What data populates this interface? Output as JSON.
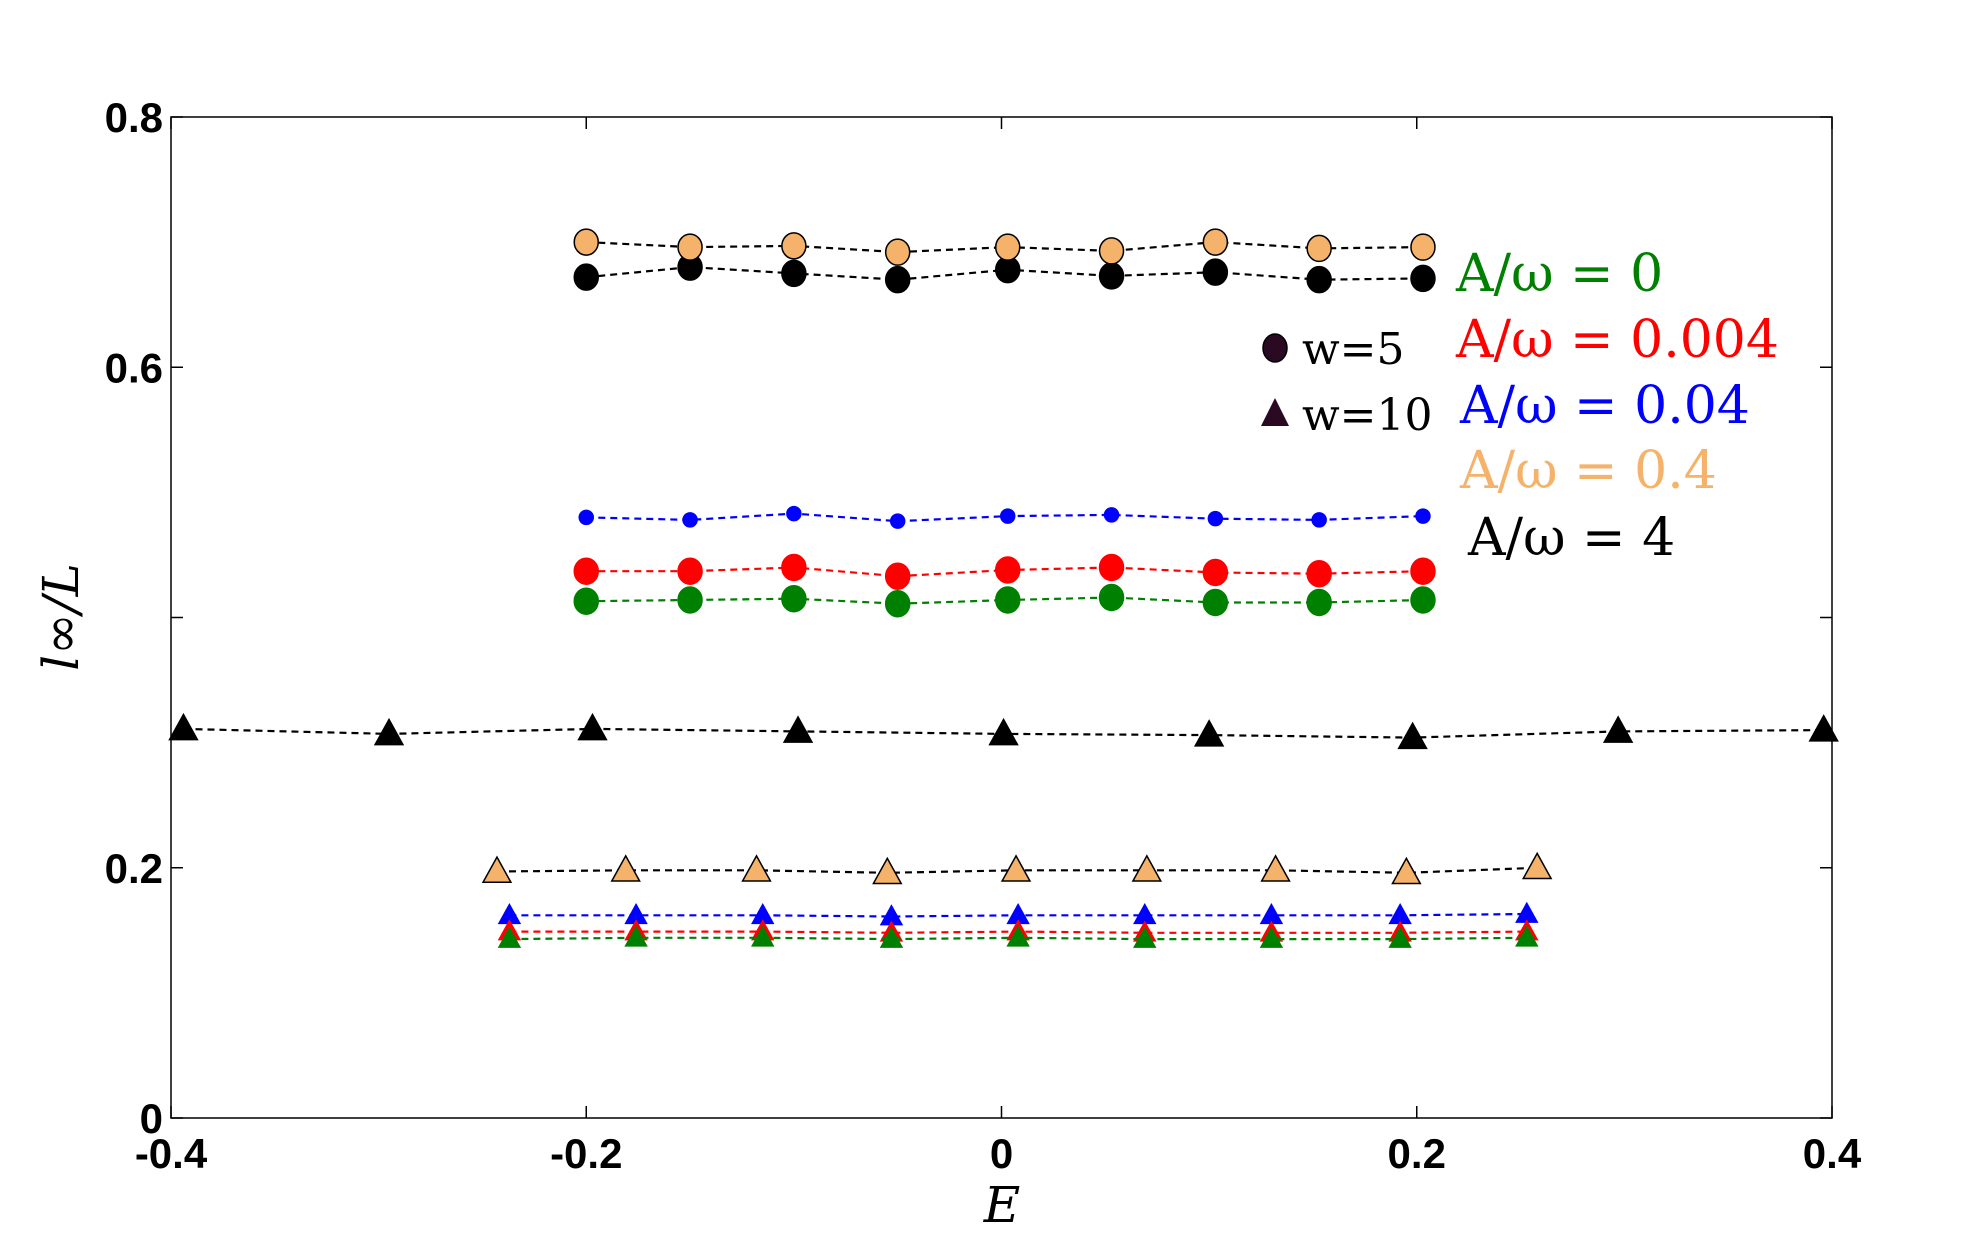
{
  "chart_data": {
    "type": "scatter",
    "xlabel": "E",
    "ylabel": "l∞/L",
    "xlim": [
      -0.4,
      0.4
    ],
    "ylim": [
      0,
      0.8
    ],
    "xticks": [
      -0.4,
      -0.2,
      0,
      0.2,
      0.4
    ],
    "xtick_labels": [
      "-0.4",
      "-0.2",
      "0",
      "0.2",
      "0.4"
    ],
    "yticks": [
      0,
      0.2,
      0.4,
      0.6,
      0.8
    ],
    "ytick_labels": [
      "0",
      "0.2",
      "",
      "0.6",
      "0.8"
    ],
    "grid": false,
    "colors": {
      "A0": "#008000",
      "A0004": "#ff0000",
      "A004": "#0000ff",
      "A04": "#f5b26b",
      "A4": "#000000",
      "marker_legend": "#2a0a22"
    },
    "legend": [
      {
        "label": "A/ω = 0",
        "color": "#008000"
      },
      {
        "label": "A/ω = 0.004",
        "color": "#ff0000"
      },
      {
        "label": "A/ω = 0.04",
        "color": "#0000ff"
      },
      {
        "label": "A/ω = 0.4",
        "color": "#f5b26b"
      },
      {
        "label": "A/ω = 4",
        "color": "#000000"
      }
    ],
    "marker_legend": [
      {
        "label": "w=5",
        "marker": "circle"
      },
      {
        "label": "w=10",
        "marker": "triangle"
      }
    ],
    "series": [
      {
        "name": "w=5, A/ω = 4",
        "marker": "circle",
        "color": "#000000",
        "fill": "#000000",
        "x": [
          -0.2,
          -0.15,
          -0.1,
          -0.05,
          0.003,
          0.053,
          0.103,
          0.153,
          0.203
        ],
        "y": [
          0.672,
          0.68,
          0.675,
          0.67,
          0.678,
          0.673,
          0.676,
          0.67,
          0.671
        ]
      },
      {
        "name": "w=5, A/ω = 0.4",
        "marker": "circle",
        "color": "#000000",
        "fill": "#f5b26b",
        "x": [
          -0.2,
          -0.15,
          -0.1,
          -0.05,
          0.003,
          0.053,
          0.103,
          0.153,
          0.203
        ],
        "y": [
          0.7,
          0.696,
          0.697,
          0.692,
          0.696,
          0.693,
          0.7,
          0.695,
          0.696
        ]
      },
      {
        "name": "w=5, A/ω = 0.04",
        "marker": "circle",
        "color": "#0000ff",
        "fill": "#0000ff",
        "x": [
          -0.2,
          -0.15,
          -0.1,
          -0.05,
          0.003,
          0.053,
          0.103,
          0.153,
          0.203
        ],
        "y": [
          0.48,
          0.478,
          0.483,
          0.477,
          0.481,
          0.482,
          0.479,
          0.478,
          0.481
        ]
      },
      {
        "name": "w=5, A/ω = 0.004",
        "marker": "circle",
        "color": "#ff0000",
        "fill": "#ff0000",
        "x": [
          -0.2,
          -0.15,
          -0.1,
          -0.05,
          0.003,
          0.053,
          0.103,
          0.153,
          0.203
        ],
        "y": [
          0.437,
          0.437,
          0.44,
          0.433,
          0.438,
          0.44,
          0.436,
          0.435,
          0.437
        ]
      },
      {
        "name": "w=5, A/ω = 0",
        "marker": "circle",
        "color": "#008000",
        "fill": "#008000",
        "x": [
          -0.2,
          -0.15,
          -0.1,
          -0.05,
          0.003,
          0.053,
          0.103,
          0.153,
          0.203
        ],
        "y": [
          0.413,
          0.414,
          0.415,
          0.411,
          0.414,
          0.416,
          0.412,
          0.412,
          0.414
        ]
      },
      {
        "name": "w=10, A/ω = 4",
        "marker": "triangle",
        "color": "#000000",
        "fill": "#000000",
        "x": [
          -0.394,
          -0.295,
          -0.197,
          -0.098,
          0.001,
          0.1,
          0.198,
          0.297,
          0.396
        ],
        "y": [
          0.311,
          0.307,
          0.311,
          0.309,
          0.307,
          0.306,
          0.304,
          0.309,
          0.31
        ]
      },
      {
        "name": "w=10, A/ω = 0.4",
        "marker": "triangle",
        "color": "#000000",
        "fill": "#f5b26b",
        "x": [
          -0.243,
          -0.181,
          -0.118,
          -0.055,
          0.007,
          0.07,
          0.132,
          0.195,
          0.258
        ],
        "y": [
          0.197,
          0.198,
          0.198,
          0.196,
          0.198,
          0.198,
          0.198,
          0.196,
          0.2
        ]
      },
      {
        "name": "w=10, A/ω = 0.04",
        "marker": "triangle",
        "color": "#0000ff",
        "fill": "#0000ff",
        "x": [
          -0.237,
          -0.176,
          -0.115,
          -0.053,
          0.008,
          0.069,
          0.13,
          0.192,
          0.253
        ],
        "y": [
          0.162,
          0.162,
          0.162,
          0.161,
          0.162,
          0.162,
          0.162,
          0.162,
          0.163
        ]
      },
      {
        "name": "w=10, A/ω = 0.004",
        "marker": "triangle",
        "color": "#ff0000",
        "fill": "#ff0000",
        "x": [
          -0.237,
          -0.176,
          -0.115,
          -0.053,
          0.008,
          0.069,
          0.13,
          0.192,
          0.253
        ],
        "y": [
          0.149,
          0.149,
          0.149,
          0.148,
          0.149,
          0.148,
          0.148,
          0.148,
          0.149
        ]
      },
      {
        "name": "w=10, A/ω = 0",
        "marker": "triangle",
        "color": "#008000",
        "fill": "#008000",
        "x": [
          -0.237,
          -0.176,
          -0.115,
          -0.053,
          0.008,
          0.069,
          0.13,
          0.192,
          0.253
        ],
        "y": [
          0.143,
          0.144,
          0.144,
          0.143,
          0.144,
          0.143,
          0.143,
          0.143,
          0.144
        ]
      }
    ]
  }
}
